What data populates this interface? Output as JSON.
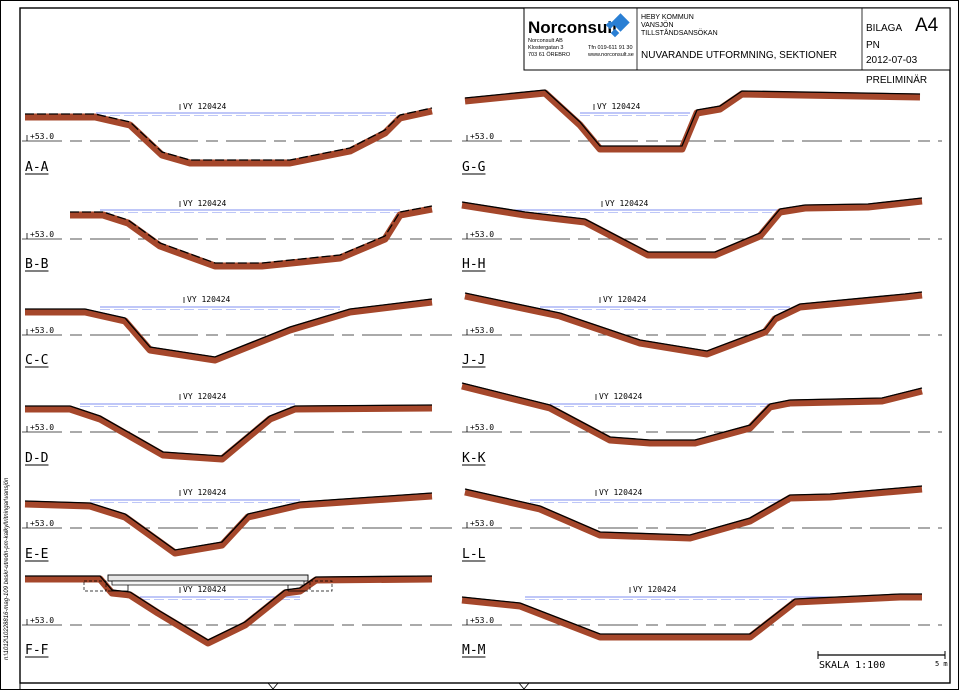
{
  "margin_note": "n:\\1012\\10228816-mag-109 beskr-utredn-pm-kalkyl\\ritningar\\vansjön",
  "title_block": {
    "company": "Norconsult",
    "company_ab": "Norconsult AB",
    "street": "Klostergatan 3",
    "postal": "703 61 ÖREBRO",
    "phone": "Tfn 019-611 91 30",
    "web": "www.norconsult.se",
    "client": "HEBY KOMMUN",
    "lake": "VANSJÖN",
    "permit": "TILLSTÅNDSANSÖKAN",
    "drawing_title": "NUVARANDE UTFORMNING, SEKTIONER",
    "bilaga_label": "BILAGA",
    "bilaga_number": "A4",
    "initials": "PN",
    "date": "2012-07-03"
  },
  "status": "PRELIMINÄR",
  "water_label": "VY 120424",
  "datum_label": "+53.0",
  "sections": [
    {
      "name": "A-A"
    },
    {
      "name": "G-G"
    },
    {
      "name": "B-B"
    },
    {
      "name": "H-H"
    },
    {
      "name": "C-C"
    },
    {
      "name": "J-J"
    },
    {
      "name": "D-D"
    },
    {
      "name": "K-K"
    },
    {
      "name": "E-E"
    },
    {
      "name": "L-L"
    },
    {
      "name": "F-F"
    },
    {
      "name": "M-M"
    }
  ],
  "scale": {
    "label": "SKALA 1:100",
    "length_label": "5 m"
  },
  "colors": {
    "terrain_fill": "#a5472b",
    "terrain_line": "#000000",
    "water_line": "#7f8ff0",
    "datum_line": "#555555",
    "logo_blue": "#2a7fd4"
  }
}
